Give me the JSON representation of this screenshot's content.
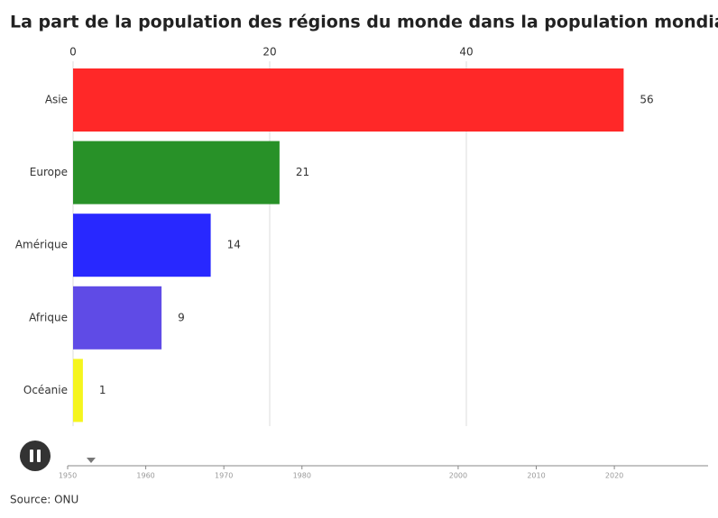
{
  "chart_data": {
    "type": "bar",
    "orientation": "horizontal",
    "title": "La part de la population des régions du monde dans la population mondiale",
    "categories": [
      "Asie",
      "Europe",
      "Amérique",
      "Afrique",
      "Océanie"
    ],
    "values": [
      56,
      21,
      14,
      9,
      1
    ],
    "colors": [
      "#ff2828",
      "#289128",
      "#2828ff",
      "#5f4be6",
      "#f5f51e"
    ],
    "xlim": [
      0,
      60
    ],
    "xticks": [
      0,
      20,
      40
    ],
    "grid": true,
    "source": "Source: ONU",
    "timeline": {
      "xlim": [
        1950,
        2032
      ],
      "xticks": [
        1950,
        1960,
        1970,
        1980,
        2000,
        2010,
        2020
      ],
      "current": 1953
    }
  }
}
